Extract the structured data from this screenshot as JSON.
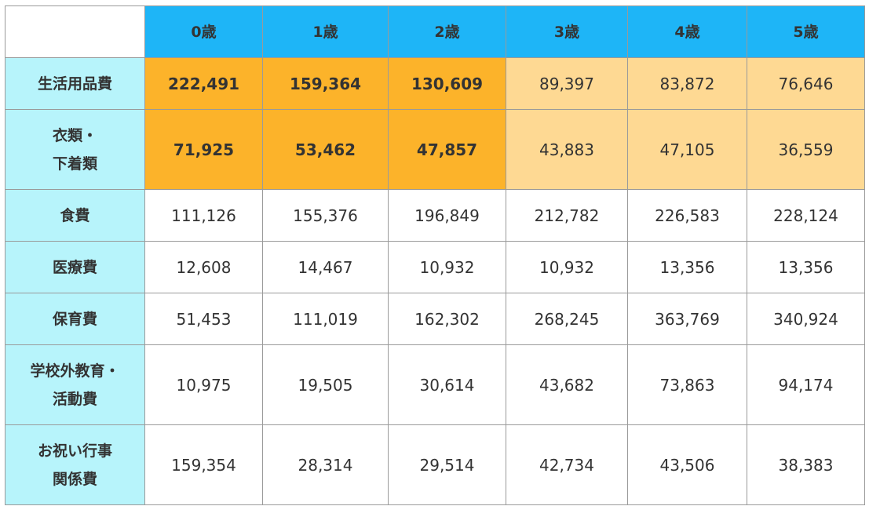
{
  "table": {
    "columns": [
      "0歳",
      "1歳",
      "2歳",
      "3歳",
      "4歳",
      "5歳"
    ],
    "rows": [
      {
        "label": "生活用品費",
        "values": [
          "222,491",
          "159,364",
          "130,609",
          "89,397",
          "83,872",
          "76,646"
        ],
        "highlight": [
          "dark",
          "dark",
          "dark",
          "light",
          "light",
          "light"
        ]
      },
      {
        "label": "衣類・下着類",
        "values": [
          "71,925",
          "53,462",
          "47,857",
          "43,883",
          "47,105",
          "36,559"
        ],
        "highlight": [
          "dark",
          "dark",
          "dark",
          "light",
          "light",
          "light"
        ]
      },
      {
        "label": "食費",
        "values": [
          "111,126",
          "155,376",
          "196,849",
          "212,782",
          "226,583",
          "228,124"
        ],
        "highlight": [
          "plain",
          "plain",
          "plain",
          "plain",
          "plain",
          "plain"
        ]
      },
      {
        "label": "医療費",
        "values": [
          "12,608",
          "14,467",
          "10,932",
          "10,932",
          "13,356",
          "13,356"
        ],
        "highlight": [
          "plain",
          "plain",
          "plain",
          "plain",
          "plain",
          "plain"
        ]
      },
      {
        "label": "保育費",
        "values": [
          "51,453",
          "111,019",
          "162,302",
          "268,245",
          "363,769",
          "340,924"
        ],
        "highlight": [
          "plain",
          "plain",
          "plain",
          "plain",
          "plain",
          "plain"
        ]
      },
      {
        "label": "学校外教育・活動費",
        "values": [
          "10,975",
          "19,505",
          "30,614",
          "43,682",
          "73,863",
          "94,174"
        ],
        "highlight": [
          "plain",
          "plain",
          "plain",
          "plain",
          "plain",
          "plain"
        ]
      },
      {
        "label": "お祝い行事関係費",
        "values": [
          "159,354",
          "28,314",
          "29,514",
          "42,734",
          "43,506",
          "38,383"
        ],
        "highlight": [
          "plain",
          "plain",
          "plain",
          "plain",
          "plain",
          "plain"
        ]
      }
    ]
  },
  "colors": {
    "header": "#1eb5f7",
    "rowhead": "#b7f4fb",
    "dark_highlight": "#fcb32a",
    "light_highlight": "#fed993"
  }
}
